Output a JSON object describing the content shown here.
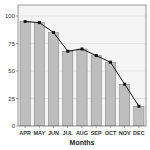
{
  "chart_data": {
    "type": "bar",
    "xlabel": "Months",
    "categories": [
      "APR",
      "MAY",
      "JUN",
      "JUL",
      "AUG",
      "SEP",
      "OCT",
      "NOV",
      "DEC"
    ],
    "series": [
      {
        "type": "bar",
        "color": "#bebebe",
        "values": [
          95,
          94,
          85,
          68,
          70,
          64,
          58,
          38,
          18
        ]
      },
      {
        "type": "line",
        "color": "#111111",
        "marker": "square",
        "values": [
          95,
          94,
          85,
          68,
          70,
          64,
          58,
          38,
          18
        ]
      }
    ],
    "ylim": [
      0,
      110
    ],
    "yticks": [
      0,
      25,
      50,
      75,
      100
    ],
    "grid": true
  }
}
